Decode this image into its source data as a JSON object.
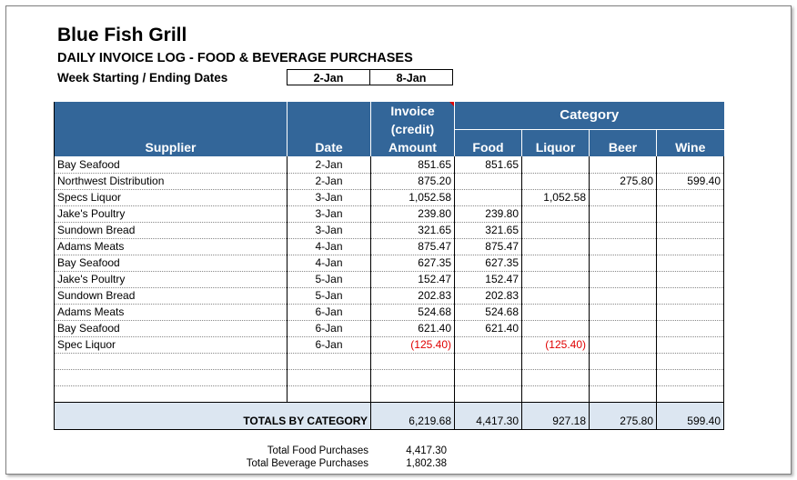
{
  "header": {
    "title": "Blue Fish Grill",
    "subtitle": "DAILY INVOICE LOG - FOOD & BEVERAGE PURCHASES",
    "week_label": "Week Starting / Ending Dates",
    "week_start": "2-Jan",
    "week_end": "8-Jan"
  },
  "columns": {
    "supplier": "Supplier",
    "date": "Date",
    "invoice_line1": "Invoice",
    "invoice_line2": "(credit)",
    "invoice_line3": "Amount",
    "category": "Category",
    "food": "Food",
    "liquor": "Liquor",
    "beer": "Beer",
    "wine": "Wine"
  },
  "rows": [
    {
      "supplier": "Bay Seafood",
      "date": "2-Jan",
      "amount": "851.65",
      "food": "851.65",
      "liquor": "",
      "beer": "",
      "wine": ""
    },
    {
      "supplier": "Northwest Distribution",
      "date": "2-Jan",
      "amount": "875.20",
      "food": "",
      "liquor": "",
      "beer": "275.80",
      "wine": "599.40"
    },
    {
      "supplier": "Specs Liquor",
      "date": "3-Jan",
      "amount": "1,052.58",
      "food": "",
      "liquor": "1,052.58",
      "beer": "",
      "wine": ""
    },
    {
      "supplier": "Jake's Poultry",
      "date": "3-Jan",
      "amount": "239.80",
      "food": "239.80",
      "liquor": "",
      "beer": "",
      "wine": ""
    },
    {
      "supplier": "Sundown Bread",
      "date": "3-Jan",
      "amount": "321.65",
      "food": "321.65",
      "liquor": "",
      "beer": "",
      "wine": ""
    },
    {
      "supplier": "Adams Meats",
      "date": "4-Jan",
      "amount": "875.47",
      "food": "875.47",
      "liquor": "",
      "beer": "",
      "wine": ""
    },
    {
      "supplier": "Bay Seafood",
      "date": "4-Jan",
      "amount": "627.35",
      "food": "627.35",
      "liquor": "",
      "beer": "",
      "wine": ""
    },
    {
      "supplier": "Jake's Poultry",
      "date": "5-Jan",
      "amount": "152.47",
      "food": "152.47",
      "liquor": "",
      "beer": "",
      "wine": ""
    },
    {
      "supplier": "Sundown Bread",
      "date": "5-Jan",
      "amount": "202.83",
      "food": "202.83",
      "liquor": "",
      "beer": "",
      "wine": ""
    },
    {
      "supplier": "Adams Meats",
      "date": "6-Jan",
      "amount": "524.68",
      "food": "524.68",
      "liquor": "",
      "beer": "",
      "wine": ""
    },
    {
      "supplier": "Bay Seafood",
      "date": "6-Jan",
      "amount": "621.40",
      "food": "621.40",
      "liquor": "",
      "beer": "",
      "wine": ""
    },
    {
      "supplier": "Spec Liquor",
      "date": "6-Jan",
      "amount": "(125.40)",
      "food": "",
      "liquor": "(125.40)",
      "beer": "",
      "wine": ""
    },
    {
      "supplier": "",
      "date": "",
      "amount": "",
      "food": "",
      "liquor": "",
      "beer": "",
      "wine": ""
    },
    {
      "supplier": "",
      "date": "",
      "amount": "",
      "food": "",
      "liquor": "",
      "beer": "",
      "wine": ""
    },
    {
      "supplier": "",
      "date": "",
      "amount": "",
      "food": "",
      "liquor": "",
      "beer": "",
      "wine": ""
    }
  ],
  "totals": {
    "label": "TOTALS BY CATEGORY",
    "amount": "6,219.68",
    "food": "4,417.30",
    "liquor": "927.18",
    "beer": "275.80",
    "wine": "599.40"
  },
  "summary": {
    "food_label": "Total Food Purchases",
    "food_value": "4,417.30",
    "beverage_label": "Total Beverage Purchases",
    "beverage_value": "1,802.38"
  },
  "colors": {
    "header_bg": "#336699",
    "total_bg": "#dce6f1",
    "negative": "#e00000"
  }
}
